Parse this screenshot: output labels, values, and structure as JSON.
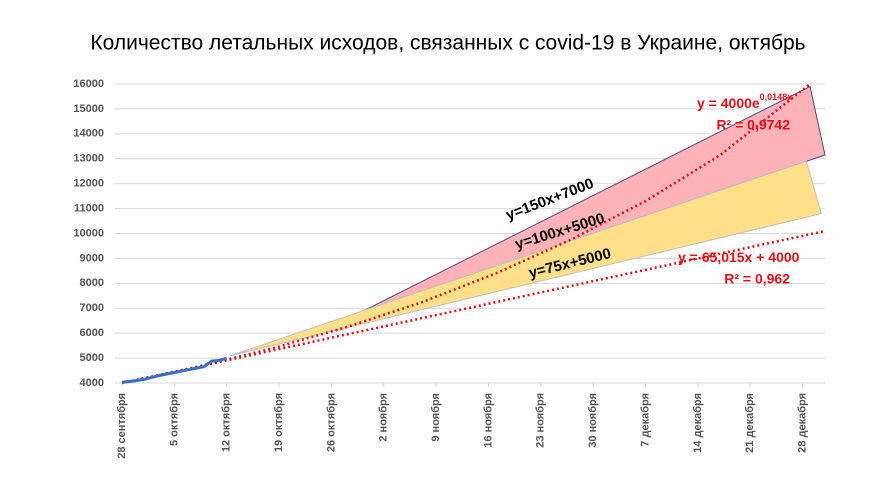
{
  "chart_data": {
    "type": "line",
    "title": "Количество летальных исходов, связанных с covid-19 в Украине, октябрь",
    "xlim": [
      0,
      94
    ],
    "xticks": [
      {
        "value": 0,
        "label": "28 сентября"
      },
      {
        "value": 7,
        "label": "5 октября"
      },
      {
        "value": 14,
        "label": "12 октября"
      },
      {
        "value": 21,
        "label": "19 октября"
      },
      {
        "value": 28,
        "label": "26 октября"
      },
      {
        "value": 35,
        "label": "2 ноября"
      },
      {
        "value": 42,
        "label": "9 ноября"
      },
      {
        "value": 49,
        "label": "16 ноября"
      },
      {
        "value": 56,
        "label": "23 ноября"
      },
      {
        "value": 63,
        "label": "30 ноября"
      },
      {
        "value": 70,
        "label": "7 декабря"
      },
      {
        "value": 77,
        "label": "14 декабря"
      },
      {
        "value": 84,
        "label": "21 декабря"
      },
      {
        "value": 91,
        "label": "28 декабря"
      }
    ],
    "ylim": [
      4000,
      16000
    ],
    "yticks": [
      4000,
      5000,
      6000,
      7000,
      8000,
      9000,
      10000,
      11000,
      12000,
      13000,
      14000,
      15000,
      16000
    ],
    "grid": true,
    "bands": [
      {
        "color": "#ffb3b8",
        "edge": "#4a4a8a",
        "x": [
          32,
          92,
          94
        ],
        "values": [
          6850,
          15900,
          13150
        ]
      },
      {
        "color": "#ffe08a",
        "edge": "#bfbfbf",
        "x": [
          14.5,
          91.5,
          93.5
        ],
        "values": [
          5100,
          12900,
          10800
        ]
      }
    ],
    "series": [
      {
        "color": "#3a6fc4",
        "x": [
          0,
          1,
          2,
          3,
          4,
          5,
          6,
          7,
          8,
          9,
          10,
          11,
          12,
          13,
          14
        ],
        "values": [
          4030,
          4060,
          4100,
          4150,
          4230,
          4300,
          4360,
          4420,
          4480,
          4540,
          4600,
          4660,
          4880,
          4910,
          4990
        ]
      }
    ],
    "trendlines": [
      {
        "equation": "y = 4000e",
        "equation_sup": "0,0148x",
        "r2": "R² = 0,9742",
        "color": "#e0101a",
        "x": [
          0,
          10,
          20,
          30,
          40,
          50,
          60,
          70,
          80,
          92
        ],
        "values": [
          4000,
          4640,
          5380,
          6240,
          7230,
          8400,
          9750,
          11300,
          13150,
          16000
        ]
      },
      {
        "equation": "y = 65,015x + 4000",
        "r2": "R² = 0,962",
        "color": "#e0101a",
        "x": [
          0,
          94
        ],
        "values": [
          4000,
          10100
        ]
      }
    ],
    "annotations": [
      "y=150x+7000",
      "y=100x+5000",
      "y=75x+5000"
    ]
  }
}
